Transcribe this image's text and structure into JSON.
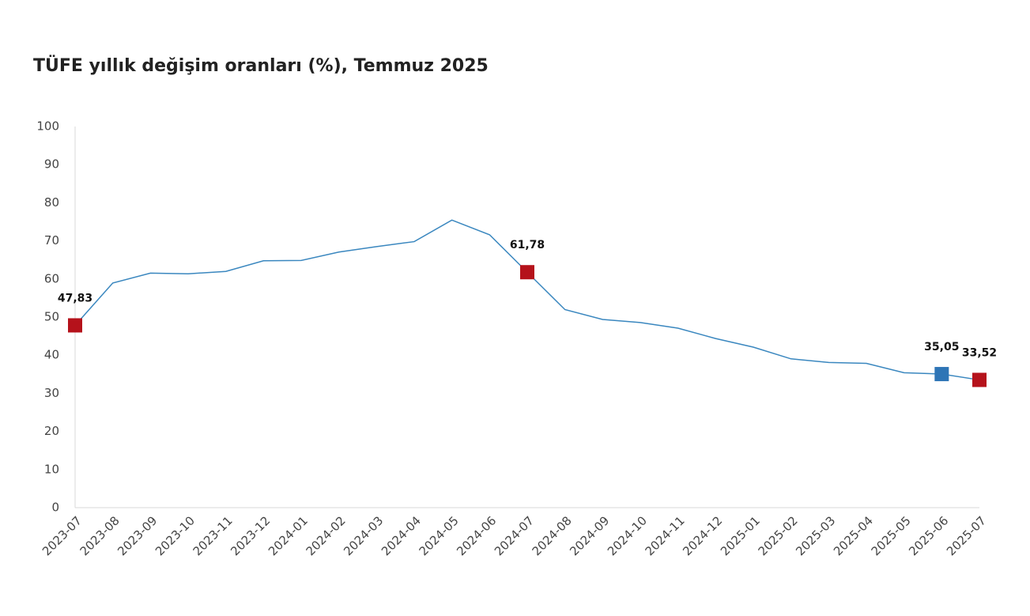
{
  "chart_data": {
    "type": "line",
    "title": "TÜFE yıllık değişim oranları (%), Temmuz 2025",
    "categories": [
      "2023-07",
      "2023-08",
      "2023-09",
      "2023-10",
      "2023-11",
      "2023-12",
      "2024-01",
      "2024-02",
      "2024-03",
      "2024-04",
      "2024-05",
      "2024-06",
      "2024-07",
      "2024-08",
      "2024-09",
      "2024-10",
      "2024-11",
      "2024-12",
      "2025-01",
      "2025-02",
      "2025-03",
      "2025-04",
      "2025-05",
      "2025-06",
      "2025-07"
    ],
    "values": [
      47.83,
      58.94,
      61.53,
      61.36,
      61.98,
      64.77,
      64.86,
      67.07,
      68.5,
      69.8,
      75.45,
      71.6,
      61.78,
      51.97,
      49.38,
      48.58,
      47.09,
      44.38,
      42.12,
      39.05,
      38.1,
      37.86,
      35.41,
      35.05,
      33.52
    ],
    "value_labels": [
      "47,83",
      null,
      null,
      null,
      null,
      null,
      null,
      null,
      null,
      null,
      null,
      null,
      "61,78",
      null,
      null,
      null,
      null,
      null,
      null,
      null,
      null,
      null,
      null,
      "35,05",
      "33,52"
    ],
    "marker_colors": [
      "#b5121b",
      null,
      null,
      null,
      null,
      null,
      null,
      null,
      null,
      null,
      null,
      null,
      "#b5121b",
      null,
      null,
      null,
      null,
      null,
      null,
      null,
      null,
      null,
      null,
      "#2e75b6",
      "#b5121b"
    ],
    "color": "#3a87bf",
    "ylim": [
      0,
      100
    ],
    "yticks": [
      0,
      10,
      20,
      30,
      40,
      50,
      60,
      70,
      80,
      90,
      100
    ],
    "grid": false
  }
}
